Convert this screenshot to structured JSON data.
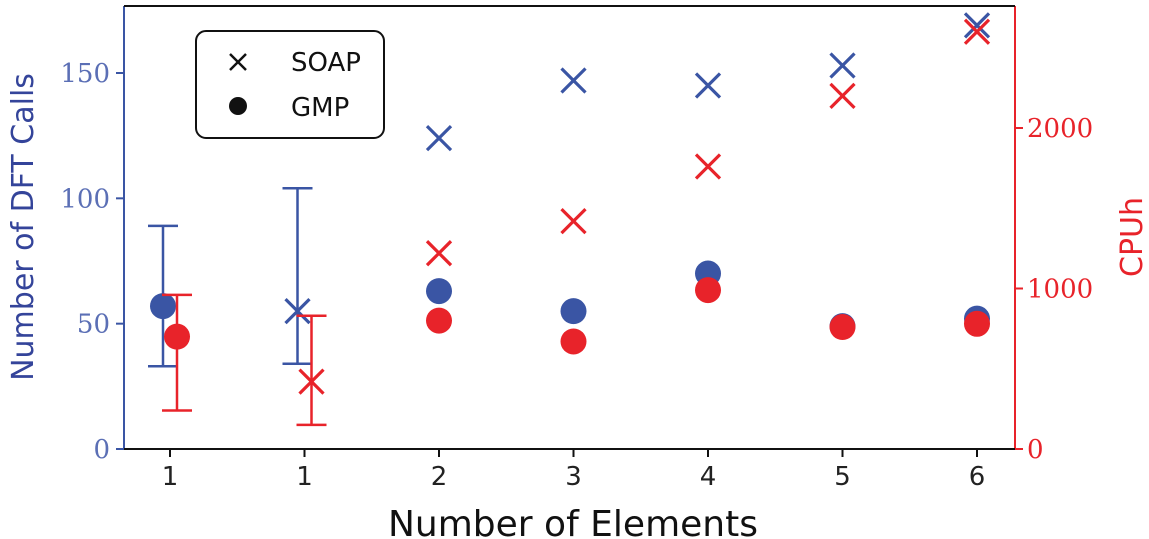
{
  "chart_data": {
    "type": "scatter",
    "xlabel": "Number of Elements",
    "ylabel": "Number of DFT Calls",
    "y2label": "CPUh",
    "categories": [
      "1",
      "1",
      "2",
      "3",
      "4",
      "5",
      "6"
    ],
    "ylim": [
      0,
      175
    ],
    "y2lim": [
      0,
      2700
    ],
    "yticks": [
      0,
      50,
      100,
      150
    ],
    "y2ticks": [
      0,
      1000,
      2000
    ],
    "legend": {
      "placement": "top-left",
      "entries": [
        {
          "label": "SOAP",
          "marker": "x"
        },
        {
          "label": "GMP",
          "marker": "circle"
        }
      ]
    },
    "colors": {
      "dft_calls": "#3a55a4",
      "cpuh": "#e8232a"
    },
    "series": [
      {
        "axis": "left",
        "marker": "circle",
        "color": "#3a55a4",
        "points": [
          {
            "x_index": 0,
            "y": 57,
            "err_low": 33,
            "err_high": 89
          },
          {
            "x_index": 2,
            "y": 63
          },
          {
            "x_index": 3,
            "y": 55
          },
          {
            "x_index": 4,
            "y": 70
          },
          {
            "x_index": 5,
            "y": 49
          },
          {
            "x_index": 6,
            "y": 52
          }
        ]
      },
      {
        "axis": "left",
        "marker": "x",
        "color": "#3a55a4",
        "points": [
          {
            "x_index": 1,
            "y": 55,
            "err_low": 34,
            "err_high": 104
          },
          {
            "x_index": 2,
            "y": 124
          },
          {
            "x_index": 3,
            "y": 147
          },
          {
            "x_index": 4,
            "y": 145
          },
          {
            "x_index": 5,
            "y": 153
          },
          {
            "x_index": 6,
            "y": 169
          }
        ]
      },
      {
        "axis": "right",
        "marker": "circle",
        "color": "#e8232a",
        "points": [
          {
            "x_index": 0,
            "y": 700,
            "err_low": 240,
            "err_high": 960
          },
          {
            "x_index": 2,
            "y": 800
          },
          {
            "x_index": 3,
            "y": 670
          },
          {
            "x_index": 4,
            "y": 990
          },
          {
            "x_index": 5,
            "y": 760
          },
          {
            "x_index": 6,
            "y": 780
          }
        ]
      },
      {
        "axis": "right",
        "marker": "x",
        "color": "#e8232a",
        "points": [
          {
            "x_index": 1,
            "y": 420,
            "err_low": 150,
            "err_high": 830
          },
          {
            "x_index": 2,
            "y": 1220
          },
          {
            "x_index": 3,
            "y": 1420
          },
          {
            "x_index": 4,
            "y": 1760
          },
          {
            "x_index": 5,
            "y": 2200
          },
          {
            "x_index": 6,
            "y": 2600
          }
        ]
      }
    ]
  }
}
